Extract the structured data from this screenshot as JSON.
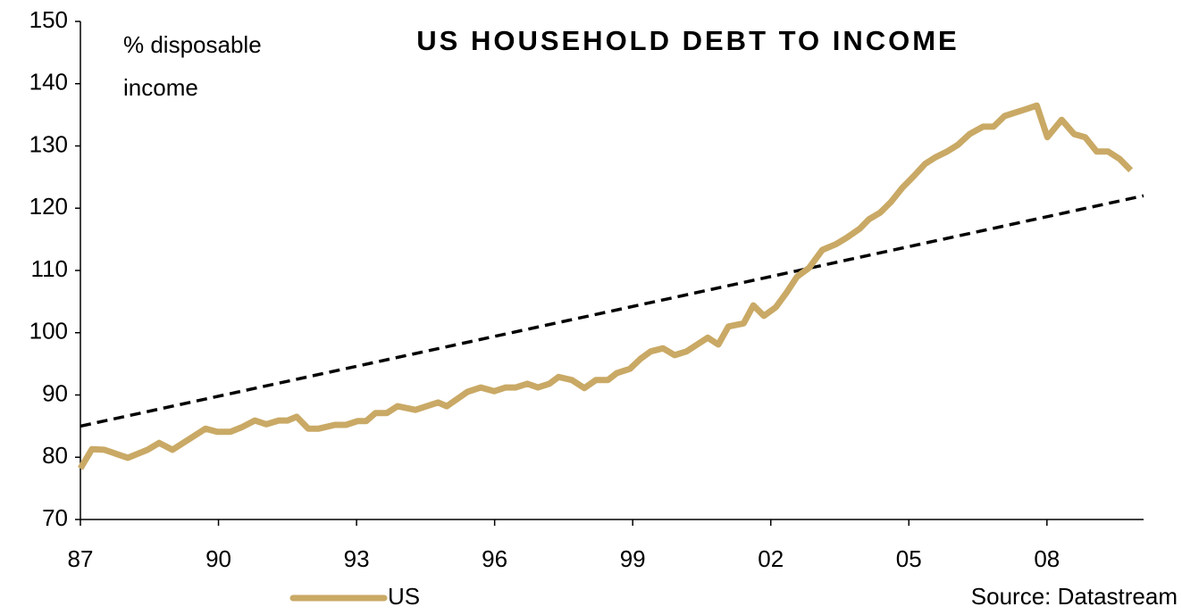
{
  "chart_data": {
    "type": "line",
    "title": "US HOUSEHOLD DEBT TO INCOME",
    "y_label": "% disposable income",
    "source": "Source: Datastream",
    "xlim": [
      1987,
      2010.1
    ],
    "xticks": [
      {
        "value": 1987,
        "label": "87"
      },
      {
        "value": 1990,
        "label": "90"
      },
      {
        "value": 1993,
        "label": "93"
      },
      {
        "value": 1996,
        "label": "96"
      },
      {
        "value": 1999,
        "label": "99"
      },
      {
        "value": 2002,
        "label": "02"
      },
      {
        "value": 2005,
        "label": "05"
      },
      {
        "value": 2008,
        "label": "08"
      }
    ],
    "ylim": [
      70,
      150
    ],
    "yticks": [
      70,
      80,
      90,
      100,
      110,
      120,
      130,
      140,
      150
    ],
    "grid": false,
    "legend": "bottom",
    "series": [
      {
        "name": "US",
        "color": "#c9a965",
        "x": [
          1987.0,
          1987.25,
          1987.52,
          1988.03,
          1988.46,
          1988.71,
          1989.0,
          1989.72,
          1989.97,
          1990.26,
          1990.5,
          1990.79,
          1991.04,
          1991.31,
          1991.5,
          1991.7,
          1991.95,
          1992.18,
          1992.53,
          1992.77,
          1993.02,
          1993.21,
          1993.41,
          1993.66,
          1993.89,
          1994.28,
          1994.77,
          1994.96,
          1995.41,
          1995.7,
          1995.99,
          1996.24,
          1996.46,
          1996.71,
          1996.94,
          1997.19,
          1997.39,
          1997.68,
          1997.95,
          1998.2,
          1998.46,
          1998.65,
          1998.94,
          1999.17,
          1999.39,
          1999.66,
          1999.91,
          2000.17,
          2000.4,
          2000.63,
          2000.86,
          2001.08,
          2001.41,
          2001.62,
          2001.85,
          2002.11,
          2002.34,
          2002.57,
          2002.83,
          2003.12,
          2003.41,
          2003.66,
          2003.93,
          2004.13,
          2004.38,
          2004.61,
          2004.86,
          2005.1,
          2005.35,
          2005.58,
          2005.83,
          2006.07,
          2006.32,
          2006.61,
          2006.84,
          2007.08,
          2007.33,
          2007.58,
          2007.78,
          2008.01,
          2008.32,
          2008.59,
          2008.83,
          2009.08,
          2009.33,
          2009.58,
          2009.82
        ],
        "values": [
          78.2,
          81.3,
          81.2,
          79.9,
          81.2,
          82.3,
          81.2,
          84.6,
          84.1,
          84.1,
          84.8,
          85.9,
          85.3,
          85.9,
          85.9,
          86.5,
          84.6,
          84.6,
          85.2,
          85.2,
          85.8,
          85.8,
          87.1,
          87.1,
          88.2,
          87.6,
          88.8,
          88.2,
          90.5,
          91.2,
          90.6,
          91.2,
          91.2,
          91.8,
          91.2,
          91.8,
          92.9,
          92.4,
          91.1,
          92.4,
          92.4,
          93.5,
          94.2,
          95.8,
          97.0,
          97.5,
          96.4,
          97.0,
          98.1,
          99.2,
          98.1,
          101.0,
          101.5,
          104.4,
          102.7,
          104.1,
          106.4,
          109.0,
          110.4,
          113.3,
          114.2,
          115.3,
          116.7,
          118.2,
          119.3,
          121.0,
          123.3,
          125.1,
          127.1,
          128.2,
          129.1,
          130.2,
          131.9,
          133.1,
          133.1,
          134.8,
          135.4,
          136.0,
          136.5,
          131.4,
          134.2,
          131.9,
          131.4,
          129.1,
          129.1,
          127.9,
          126.1
        ]
      }
    ],
    "trend_line": {
      "color": "#000000",
      "dashed": true,
      "x": [
        1987,
        2010.1
      ],
      "values": [
        85,
        122
      ]
    }
  }
}
